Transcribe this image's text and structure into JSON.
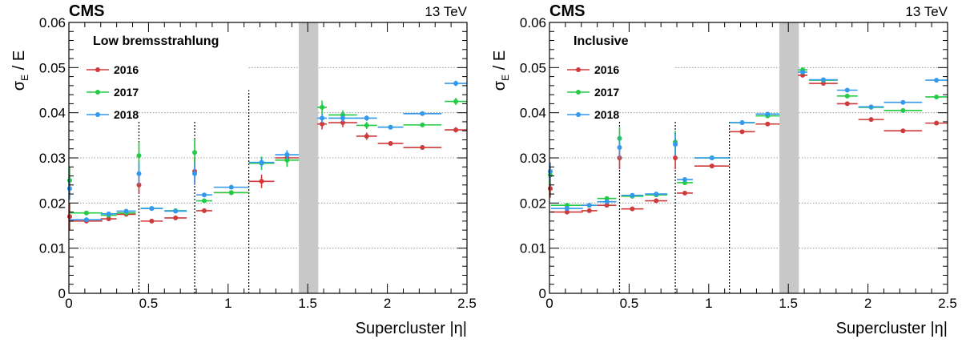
{
  "colors": {
    "2016": "#d03a3a",
    "2017": "#22cc44",
    "2018": "#3399ee",
    "gap": "#c8c8c8",
    "grid": "#888888"
  },
  "chart_data": [
    {
      "type": "scatter",
      "experiment": "CMS",
      "energy": "13 TeV",
      "category": "Low bremsstrahlung",
      "xlabel": "Supercluster |η|",
      "ylabel": "σE / E",
      "ylabel_main": "σ",
      "ylabel_sub": "E",
      "ylabel_tail": " / E",
      "xlim": [
        0,
        2.5
      ],
      "ylim": [
        0,
        0.06
      ],
      "xticks": [
        "0",
        "0.5",
        "1",
        "1.5",
        "2",
        "2.5"
      ],
      "yticks": [
        "0",
        "0.01",
        "0.02",
        "0.03",
        "0.04",
        "0.05",
        "0.06"
      ],
      "grid": "horizontal dotted at 0.01 steps",
      "gap_band": [
        1.4442,
        1.566
      ],
      "module_boundaries": [
        0.44,
        0.79,
        1.13
      ],
      "legend_placement": "top-left",
      "series": [
        {
          "name": "2016",
          "points": [
            {
              "x": 0.005,
              "xerr": 0.005,
              "y": 0.017,
              "yerr": 0.003
            },
            {
              "x": 0.11,
              "xerr": 0.1,
              "y": 0.016,
              "yerr": 0.0005
            },
            {
              "x": 0.25,
              "xerr": 0.05,
              "y": 0.0165,
              "yerr": 0.0005
            },
            {
              "x": 0.36,
              "xerr": 0.06,
              "y": 0.0175,
              "yerr": 0.0005
            },
            {
              "x": 0.44,
              "xerr": 0.005,
              "y": 0.024,
              "yerr": 0.002
            },
            {
              "x": 0.52,
              "xerr": 0.07,
              "y": 0.016,
              "yerr": 0.0003
            },
            {
              "x": 0.67,
              "xerr": 0.07,
              "y": 0.0167,
              "yerr": 0.0003
            },
            {
              "x": 0.79,
              "xerr": 0.005,
              "y": 0.027,
              "yerr": 0.003
            },
            {
              "x": 0.85,
              "xerr": 0.05,
              "y": 0.0183,
              "yerr": 0.0005
            },
            {
              "x": 1.02,
              "xerr": 0.11,
              "y": 0.0223,
              "yerr": 0.0005
            },
            {
              "x": 1.21,
              "xerr": 0.08,
              "y": 0.0248,
              "yerr": 0.0015
            },
            {
              "x": 1.37,
              "xerr": 0.075,
              "y": 0.03,
              "yerr": 0.001
            },
            {
              "x": 1.59,
              "xerr": 0.03,
              "y": 0.0375,
              "yerr": 0.0012
            },
            {
              "x": 1.72,
              "xerr": 0.09,
              "y": 0.0378,
              "yerr": 0.001
            },
            {
              "x": 1.87,
              "xerr": 0.065,
              "y": 0.0348,
              "yerr": 0.0008
            },
            {
              "x": 2.02,
              "xerr": 0.08,
              "y": 0.0332,
              "yerr": 0.0005
            },
            {
              "x": 2.22,
              "xerr": 0.12,
              "y": 0.0323,
              "yerr": 0.0003
            },
            {
              "x": 2.43,
              "xerr": 0.07,
              "y": 0.0362,
              "yerr": 0.0006
            }
          ]
        },
        {
          "name": "2017",
          "points": [
            {
              "x": 0.005,
              "xerr": 0.005,
              "y": 0.025,
              "yerr": 0.003
            },
            {
              "x": 0.11,
              "xerr": 0.1,
              "y": 0.0178,
              "yerr": 0.0004
            },
            {
              "x": 0.25,
              "xerr": 0.05,
              "y": 0.0173,
              "yerr": 0.0004
            },
            {
              "x": 0.36,
              "xerr": 0.06,
              "y": 0.0178,
              "yerr": 0.0004
            },
            {
              "x": 0.44,
              "xerr": 0.005,
              "y": 0.0305,
              "yerr": 0.003
            },
            {
              "x": 0.52,
              "xerr": 0.07,
              "y": 0.0188,
              "yerr": 0.0003
            },
            {
              "x": 0.67,
              "xerr": 0.07,
              "y": 0.0183,
              "yerr": 0.0003
            },
            {
              "x": 0.79,
              "xerr": 0.005,
              "y": 0.0312,
              "yerr": 0.003
            },
            {
              "x": 0.85,
              "xerr": 0.05,
              "y": 0.0205,
              "yerr": 0.0005
            },
            {
              "x": 1.02,
              "xerr": 0.11,
              "y": 0.0223,
              "yerr": 0.0005
            },
            {
              "x": 1.21,
              "xerr": 0.08,
              "y": 0.0288,
              "yerr": 0.0015
            },
            {
              "x": 1.37,
              "xerr": 0.075,
              "y": 0.0295,
              "yerr": 0.0015
            },
            {
              "x": 1.59,
              "xerr": 0.03,
              "y": 0.0412,
              "yerr": 0.0015
            },
            {
              "x": 1.72,
              "xerr": 0.09,
              "y": 0.0395,
              "yerr": 0.001
            },
            {
              "x": 1.87,
              "xerr": 0.065,
              "y": 0.0372,
              "yerr": 0.0008
            },
            {
              "x": 2.02,
              "xerr": 0.08,
              "y": 0.0368,
              "yerr": 0.0005
            },
            {
              "x": 2.22,
              "xerr": 0.12,
              "y": 0.0373,
              "yerr": 0.0004
            },
            {
              "x": 2.43,
              "xerr": 0.07,
              "y": 0.0425,
              "yerr": 0.0008
            }
          ]
        },
        {
          "name": "2018",
          "points": [
            {
              "x": 0.005,
              "xerr": 0.005,
              "y": 0.0232,
              "yerr": 0.0025
            },
            {
              "x": 0.11,
              "xerr": 0.1,
              "y": 0.0163,
              "yerr": 0.0003
            },
            {
              "x": 0.25,
              "xerr": 0.05,
              "y": 0.0176,
              "yerr": 0.0003
            },
            {
              "x": 0.36,
              "xerr": 0.06,
              "y": 0.0182,
              "yerr": 0.0003
            },
            {
              "x": 0.44,
              "xerr": 0.005,
              "y": 0.0265,
              "yerr": 0.0025
            },
            {
              "x": 0.52,
              "xerr": 0.07,
              "y": 0.0188,
              "yerr": 0.0003
            },
            {
              "x": 0.67,
              "xerr": 0.07,
              "y": 0.0182,
              "yerr": 0.0003
            },
            {
              "x": 0.79,
              "xerr": 0.005,
              "y": 0.0265,
              "yerr": 0.0025
            },
            {
              "x": 0.85,
              "xerr": 0.05,
              "y": 0.0218,
              "yerr": 0.0004
            },
            {
              "x": 1.02,
              "xerr": 0.11,
              "y": 0.0235,
              "yerr": 0.0004
            },
            {
              "x": 1.21,
              "xerr": 0.08,
              "y": 0.029,
              "yerr": 0.001
            },
            {
              "x": 1.37,
              "xerr": 0.075,
              "y": 0.0307,
              "yerr": 0.001
            },
            {
              "x": 1.59,
              "xerr": 0.03,
              "y": 0.0388,
              "yerr": 0.001
            },
            {
              "x": 1.72,
              "xerr": 0.09,
              "y": 0.0388,
              "yerr": 0.0008
            },
            {
              "x": 1.87,
              "xerr": 0.065,
              "y": 0.0388,
              "yerr": 0.0006
            },
            {
              "x": 2.02,
              "xerr": 0.08,
              "y": 0.0368,
              "yerr": 0.0004
            },
            {
              "x": 2.22,
              "xerr": 0.12,
              "y": 0.0398,
              "yerr": 0.0004
            },
            {
              "x": 2.43,
              "xerr": 0.07,
              "y": 0.0465,
              "yerr": 0.0006
            }
          ]
        }
      ]
    },
    {
      "type": "scatter",
      "experiment": "CMS",
      "energy": "13 TeV",
      "category": "Inclusive",
      "xlabel": "Supercluster |η|",
      "ylabel": "σE / E",
      "ylabel_main": "σ",
      "ylabel_sub": "E",
      "ylabel_tail": " / E",
      "xlim": [
        0,
        2.5
      ],
      "ylim": [
        0,
        0.06
      ],
      "xticks": [
        "0",
        "0.5",
        "1",
        "1.5",
        "2",
        "2.5"
      ],
      "yticks": [
        "0",
        "0.01",
        "0.02",
        "0.03",
        "0.04",
        "0.05",
        "0.06"
      ],
      "grid": "horizontal dotted at 0.01 steps",
      "gap_band": [
        1.4442,
        1.566
      ],
      "module_boundaries": [
        0.44,
        0.79,
        1.13
      ],
      "legend_placement": "top-left",
      "series": [
        {
          "name": "2016",
          "points": [
            {
              "x": 0.005,
              "xerr": 0.005,
              "y": 0.0232,
              "yerr": 0.002
            },
            {
              "x": 0.11,
              "xerr": 0.1,
              "y": 0.018,
              "yerr": 0.0003
            },
            {
              "x": 0.25,
              "xerr": 0.05,
              "y": 0.0183,
              "yerr": 0.0003
            },
            {
              "x": 0.36,
              "xerr": 0.06,
              "y": 0.0195,
              "yerr": 0.0003
            },
            {
              "x": 0.44,
              "xerr": 0.005,
              "y": 0.03,
              "yerr": 0.0025
            },
            {
              "x": 0.52,
              "xerr": 0.07,
              "y": 0.0187,
              "yerr": 0.0003
            },
            {
              "x": 0.67,
              "xerr": 0.07,
              "y": 0.0205,
              "yerr": 0.0003
            },
            {
              "x": 0.79,
              "xerr": 0.005,
              "y": 0.03,
              "yerr": 0.0025
            },
            {
              "x": 0.85,
              "xerr": 0.05,
              "y": 0.0222,
              "yerr": 0.0003
            },
            {
              "x": 1.02,
              "xerr": 0.11,
              "y": 0.0282,
              "yerr": 0.0003
            },
            {
              "x": 1.21,
              "xerr": 0.08,
              "y": 0.0358,
              "yerr": 0.0003
            },
            {
              "x": 1.37,
              "xerr": 0.075,
              "y": 0.0375,
              "yerr": 0.0003
            },
            {
              "x": 1.59,
              "xerr": 0.03,
              "y": 0.0483,
              "yerr": 0.0004
            },
            {
              "x": 1.72,
              "xerr": 0.09,
              "y": 0.0465,
              "yerr": 0.0003
            },
            {
              "x": 1.87,
              "xerr": 0.065,
              "y": 0.042,
              "yerr": 0.0003
            },
            {
              "x": 2.02,
              "xerr": 0.08,
              "y": 0.0385,
              "yerr": 0.0003
            },
            {
              "x": 2.22,
              "xerr": 0.12,
              "y": 0.036,
              "yerr": 0.0003
            },
            {
              "x": 2.43,
              "xerr": 0.07,
              "y": 0.0377,
              "yerr": 0.0004
            }
          ]
        },
        {
          "name": "2017",
          "points": [
            {
              "x": 0.005,
              "xerr": 0.005,
              "y": 0.0262,
              "yerr": 0.002
            },
            {
              "x": 0.11,
              "xerr": 0.1,
              "y": 0.0195,
              "yerr": 0.0003
            },
            {
              "x": 0.25,
              "xerr": 0.05,
              "y": 0.0195,
              "yerr": 0.0003
            },
            {
              "x": 0.36,
              "xerr": 0.06,
              "y": 0.021,
              "yerr": 0.0003
            },
            {
              "x": 0.44,
              "xerr": 0.005,
              "y": 0.0343,
              "yerr": 0.0025
            },
            {
              "x": 0.52,
              "xerr": 0.07,
              "y": 0.0215,
              "yerr": 0.0003
            },
            {
              "x": 0.67,
              "xerr": 0.07,
              "y": 0.0218,
              "yerr": 0.0003
            },
            {
              "x": 0.79,
              "xerr": 0.005,
              "y": 0.0335,
              "yerr": 0.0025
            },
            {
              "x": 0.85,
              "xerr": 0.05,
              "y": 0.0245,
              "yerr": 0.0003
            },
            {
              "x": 1.02,
              "xerr": 0.11,
              "y": 0.03,
              "yerr": 0.0003
            },
            {
              "x": 1.21,
              "xerr": 0.08,
              "y": 0.0378,
              "yerr": 0.0003
            },
            {
              "x": 1.37,
              "xerr": 0.075,
              "y": 0.0393,
              "yerr": 0.0003
            },
            {
              "x": 1.59,
              "xerr": 0.03,
              "y": 0.0495,
              "yerr": 0.0004
            },
            {
              "x": 1.72,
              "xerr": 0.09,
              "y": 0.0472,
              "yerr": 0.0003
            },
            {
              "x": 1.87,
              "xerr": 0.065,
              "y": 0.0437,
              "yerr": 0.0003
            },
            {
              "x": 2.02,
              "xerr": 0.08,
              "y": 0.0412,
              "yerr": 0.0003
            },
            {
              "x": 2.22,
              "xerr": 0.12,
              "y": 0.0405,
              "yerr": 0.0003
            },
            {
              "x": 2.43,
              "xerr": 0.07,
              "y": 0.0435,
              "yerr": 0.0004
            }
          ]
        },
        {
          "name": "2018",
          "points": [
            {
              "x": 0.005,
              "xerr": 0.005,
              "y": 0.027,
              "yerr": 0.002
            },
            {
              "x": 0.11,
              "xerr": 0.1,
              "y": 0.0188,
              "yerr": 0.0003
            },
            {
              "x": 0.25,
              "xerr": 0.05,
              "y": 0.0195,
              "yerr": 0.0003
            },
            {
              "x": 0.36,
              "xerr": 0.06,
              "y": 0.0203,
              "yerr": 0.0003
            },
            {
              "x": 0.44,
              "xerr": 0.005,
              "y": 0.0323,
              "yerr": 0.0025
            },
            {
              "x": 0.52,
              "xerr": 0.07,
              "y": 0.0217,
              "yerr": 0.0003
            },
            {
              "x": 0.67,
              "xerr": 0.07,
              "y": 0.022,
              "yerr": 0.0003
            },
            {
              "x": 0.79,
              "xerr": 0.005,
              "y": 0.033,
              "yerr": 0.0025
            },
            {
              "x": 0.85,
              "xerr": 0.05,
              "y": 0.0252,
              "yerr": 0.0003
            },
            {
              "x": 1.02,
              "xerr": 0.11,
              "y": 0.03,
              "yerr": 0.0003
            },
            {
              "x": 1.21,
              "xerr": 0.08,
              "y": 0.0378,
              "yerr": 0.0003
            },
            {
              "x": 1.37,
              "xerr": 0.075,
              "y": 0.0397,
              "yerr": 0.0003
            },
            {
              "x": 1.59,
              "xerr": 0.03,
              "y": 0.049,
              "yerr": 0.0004
            },
            {
              "x": 1.72,
              "xerr": 0.09,
              "y": 0.0473,
              "yerr": 0.0003
            },
            {
              "x": 1.87,
              "xerr": 0.065,
              "y": 0.045,
              "yerr": 0.0003
            },
            {
              "x": 2.02,
              "xerr": 0.08,
              "y": 0.0413,
              "yerr": 0.0003
            },
            {
              "x": 2.22,
              "xerr": 0.12,
              "y": 0.0423,
              "yerr": 0.0003
            },
            {
              "x": 2.43,
              "xerr": 0.07,
              "y": 0.0472,
              "yerr": 0.0004
            }
          ]
        }
      ]
    }
  ]
}
